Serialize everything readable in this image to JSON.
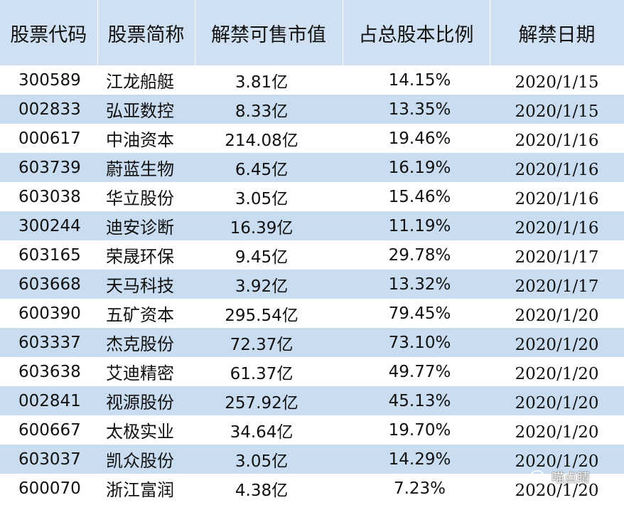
{
  "table": {
    "headers": [
      "股票代码",
      "股票简称",
      "解禁可售市值",
      "占总股本比例",
      "解禁日期"
    ],
    "rows": [
      {
        "code": "300589",
        "name": "江龙船艇",
        "value": "3.81亿",
        "ratio": "14.15%",
        "date": "2020/1/15"
      },
      {
        "code": "002833",
        "name": "弘亚数控",
        "value": "8.33亿",
        "ratio": "13.35%",
        "date": "2020/1/15"
      },
      {
        "code": "000617",
        "name": "中油资本",
        "value": "214.08亿",
        "ratio": "19.46%",
        "date": "2020/1/16"
      },
      {
        "code": "603739",
        "name": "蔚蓝生物",
        "value": "6.45亿",
        "ratio": "16.19%",
        "date": "2020/1/16"
      },
      {
        "code": "603038",
        "name": "华立股份",
        "value": "3.05亿",
        "ratio": "15.46%",
        "date": "2020/1/16"
      },
      {
        "code": "300244",
        "name": "迪安诊断",
        "value": "16.39亿",
        "ratio": "11.19%",
        "date": "2020/1/16"
      },
      {
        "code": "603165",
        "name": "荣晟环保",
        "value": "9.45亿",
        "ratio": "29.78%",
        "date": "2020/1/17"
      },
      {
        "code": "603668",
        "name": "天马科技",
        "value": "3.92亿",
        "ratio": "13.32%",
        "date": "2020/1/17"
      },
      {
        "code": "600390",
        "name": "五矿资本",
        "value": "295.54亿",
        "ratio": "79.45%",
        "date": "2020/1/20"
      },
      {
        "code": "603337",
        "name": "杰克股份",
        "value": "72.37亿",
        "ratio": "73.10%",
        "date": "2020/1/20"
      },
      {
        "code": "603638",
        "name": "艾迪精密",
        "value": "61.37亿",
        "ratio": "49.77%",
        "date": "2020/1/20"
      },
      {
        "code": "002841",
        "name": "视源股份",
        "value": "257.92亿",
        "ratio": "45.13%",
        "date": "2020/1/20"
      },
      {
        "code": "600667",
        "name": "太极实业",
        "value": "34.64亿",
        "ratio": "19.70%",
        "date": "2020/1/20"
      },
      {
        "code": "603037",
        "name": "凯众股份",
        "value": "3.05亿",
        "ratio": "14.29%",
        "date": "2020/1/20"
      },
      {
        "code": "600070",
        "name": "浙江富润",
        "value": "4.38亿",
        "ratio": "7.23%",
        "date": "2020/1/20"
      }
    ]
  },
  "watermark": {
    "text": "喵点睛",
    "icon": "wechat-icon"
  },
  "colors": {
    "header_bg": "#cfe0f2",
    "stripe_bg": "#c9dcf0",
    "row_bg": "#ffffff"
  }
}
